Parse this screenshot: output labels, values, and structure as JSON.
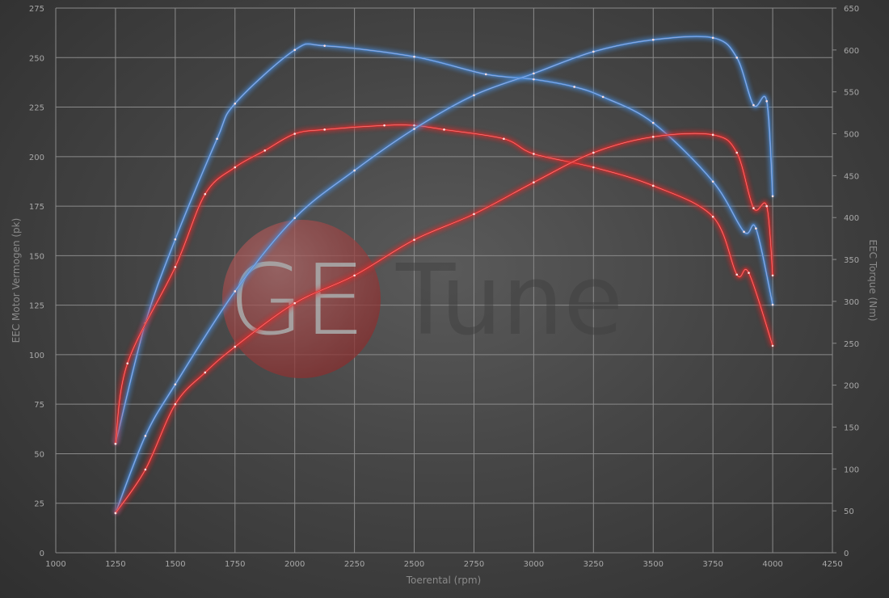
{
  "chart_data": {
    "type": "line",
    "title": "",
    "xlabel": "Toerental (rpm)",
    "ylabel": "EEC Motor Vermogen (pk)",
    "y2label": "EEC Torque (Nm)",
    "xlim": [
      1000,
      4250
    ],
    "ylim": [
      0,
      275
    ],
    "y2lim": [
      0,
      650
    ],
    "grid": true,
    "x_ticks": [
      1000,
      1250,
      1500,
      1750,
      2000,
      2250,
      2500,
      2750,
      3000,
      3250,
      3500,
      3750,
      4000,
      4250
    ],
    "y_ticks": [
      0,
      25,
      50,
      75,
      100,
      125,
      150,
      175,
      200,
      225,
      250,
      275
    ],
    "y2_ticks": [
      0,
      50,
      100,
      150,
      200,
      250,
      300,
      350,
      400,
      450,
      500,
      550,
      600,
      650
    ],
    "watermark": "GETuned",
    "series": [
      {
        "axis": "right",
        "color": "#4a8fe0",
        "x": [
          1250,
          1375,
          1500,
          1675,
          1750,
          2000,
          2125,
          2500,
          2800,
          3000,
          3170,
          3290,
          3500,
          3750,
          3880,
          3930,
          4000
        ],
        "values": [
          130,
          274,
          374,
          494,
          536,
          600,
          605,
          592,
          571,
          565,
          556,
          544,
          513,
          443,
          383,
          387,
          296
        ]
      },
      {
        "axis": "right",
        "color": "#e02a2a",
        "x": [
          1250,
          1300,
          1500,
          1625,
          1750,
          1875,
          2000,
          2125,
          2375,
          2500,
          2625,
          2875,
          3000,
          3250,
          3500,
          3750,
          3850,
          3900,
          4000
        ],
        "values": [
          130,
          226,
          341,
          428,
          460,
          480,
          500,
          505,
          510,
          510,
          505,
          494,
          476,
          460,
          438,
          401,
          332,
          334,
          247
        ]
      },
      {
        "axis": "left",
        "color": "#4a8fe0",
        "x": [
          1250,
          1375,
          1500,
          1750,
          2000,
          2250,
          2500,
          2750,
          3000,
          3250,
          3500,
          3750,
          3850,
          3920,
          3975,
          4000
        ],
        "values": [
          20,
          59,
          85,
          132,
          169,
          193,
          214,
          231,
          242,
          253,
          259,
          260,
          250,
          226,
          228,
          180
        ]
      },
      {
        "axis": "left",
        "color": "#e02a2a",
        "x": [
          1250,
          1375,
          1500,
          1625,
          1750,
          2000,
          2250,
          2500,
          2750,
          3000,
          3250,
          3500,
          3750,
          3850,
          3920,
          3975,
          4000
        ],
        "values": [
          20,
          42,
          75,
          91,
          104,
          126,
          140,
          158,
          171,
          187,
          202,
          210,
          211,
          202,
          174,
          175,
          140
        ]
      }
    ]
  }
}
